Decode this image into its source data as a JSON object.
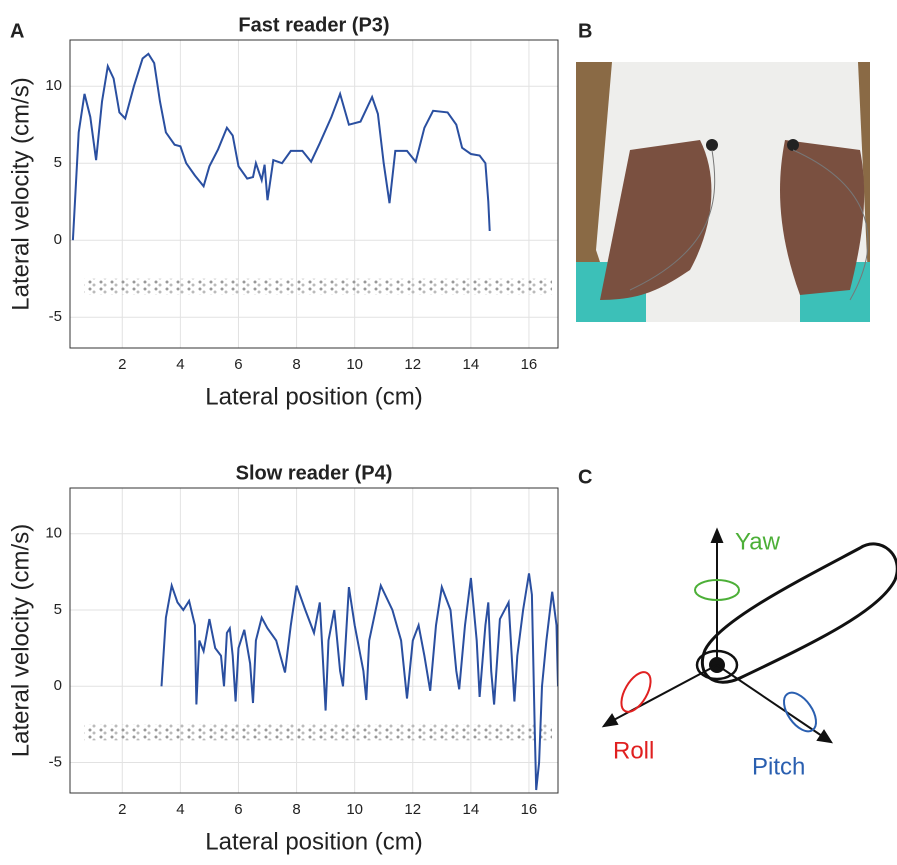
{
  "panels": {
    "a": "A",
    "b": "B",
    "c": "C"
  },
  "chart_data": [
    {
      "type": "line",
      "title": "Fast reader (P3)",
      "x_label": "Lateral position (cm)",
      "y_label": "Lateral velocity (cm/s)",
      "xlim": [
        0.2,
        17
      ],
      "ylim": [
        -7,
        13
      ],
      "xticks": [
        2,
        4,
        6,
        8,
        10,
        12,
        14,
        16
      ],
      "yticks": [
        -5,
        0,
        5,
        10
      ],
      "grid": true,
      "series": [
        {
          "color": "#2a4fa0",
          "x": [
            0.3,
            0.5,
            0.7,
            0.9,
            1.1,
            1.3,
            1.5,
            1.7,
            1.9,
            2.1,
            2.4,
            2.7,
            2.9,
            3.1,
            3.3,
            3.5,
            3.8,
            4.0,
            4.2,
            4.5,
            4.8,
            5.0,
            5.3,
            5.6,
            5.8,
            6.0,
            6.3,
            6.5,
            6.6,
            6.8,
            6.9,
            7.0,
            7.2,
            7.5,
            7.8,
            8.2,
            8.5,
            8.8,
            9.2,
            9.5,
            9.8,
            10.2,
            10.6,
            10.8,
            11.0,
            11.2,
            11.4,
            11.8,
            12.1,
            12.4,
            12.7,
            13.2,
            13.5,
            13.7,
            14.0,
            14.3,
            14.5,
            14.6,
            14.65
          ],
          "values": [
            0,
            7,
            9.5,
            8,
            5.2,
            9,
            11.3,
            10.5,
            8.3,
            7.9,
            10,
            11.8,
            12.1,
            11.5,
            9,
            7,
            6.2,
            6.1,
            5,
            4.2,
            3.5,
            4.8,
            5.9,
            7.3,
            6.8,
            4.8,
            4,
            4.1,
            5,
            3.9,
            4.9,
            2.6,
            5.2,
            5,
            5.8,
            5.8,
            5.1,
            6.3,
            8,
            9.5,
            7.5,
            7.7,
            9.3,
            8.2,
            5,
            2.4,
            5.8,
            5.8,
            5.1,
            7.3,
            8.4,
            8.3,
            7.5,
            6,
            5.6,
            5.5,
            5,
            2.5,
            0.6
          ]
        }
      ]
    },
    {
      "type": "line",
      "title": "Slow reader (P4)",
      "x_label": "Lateral position (cm)",
      "y_label": "Lateral velocity (cm/s)",
      "xlim": [
        0.2,
        17
      ],
      "ylim": [
        -7,
        13
      ],
      "xticks": [
        2,
        4,
        6,
        8,
        10,
        12,
        14,
        16
      ],
      "yticks": [
        -5,
        0,
        5,
        10
      ],
      "grid": true,
      "series": [
        {
          "color": "#2a4fa0",
          "x": [
            3.35,
            3.5,
            3.7,
            3.9,
            4.1,
            4.3,
            4.5,
            4.55,
            4.65,
            4.8,
            5.0,
            5.2,
            5.4,
            5.5,
            5.6,
            5.7,
            5.8,
            5.9,
            6.0,
            6.2,
            6.4,
            6.5,
            6.6,
            6.8,
            7.0,
            7.3,
            7.6,
            7.8,
            8.0,
            8.3,
            8.6,
            8.8,
            8.9,
            9.0,
            9.1,
            9.3,
            9.5,
            9.6,
            9.8,
            10.0,
            10.3,
            10.4,
            10.5,
            10.9,
            11.3,
            11.6,
            11.8,
            12.0,
            12.2,
            12.4,
            12.6,
            12.8,
            13.0,
            13.3,
            13.5,
            13.6,
            13.8,
            14.0,
            14.2,
            14.3,
            14.5,
            14.6,
            14.7,
            14.8,
            15.0,
            15.3,
            15.5,
            15.6,
            15.8,
            16.0,
            16.1,
            16.2,
            16.25,
            16.35,
            16.45,
            16.6,
            16.8,
            16.95,
            17.0
          ],
          "values": [
            0,
            4.5,
            6.6,
            5.5,
            5,
            5.6,
            4,
            -1.2,
            3,
            2.3,
            4.4,
            2.5,
            2,
            0,
            3.5,
            3.8,
            2,
            -1,
            2.5,
            3.7,
            1.5,
            -1.1,
            3,
            4.5,
            3.8,
            3,
            0.9,
            4,
            6.6,
            5,
            3.5,
            5.5,
            2,
            -1.6,
            3,
            5,
            1,
            0,
            6.5,
            4,
            1,
            -0.9,
            3,
            6.6,
            5,
            3,
            -0.8,
            3,
            4,
            2,
            -0.3,
            4,
            6.5,
            5,
            1,
            -0.2,
            4,
            7.1,
            3,
            -0.7,
            4,
            5.5,
            1,
            -1.2,
            4.4,
            5.5,
            -1,
            2,
            5,
            7.4,
            6,
            -3,
            -6.8,
            -5,
            0,
            3,
            6.2,
            4,
            0
          ]
        }
      ]
    }
  ],
  "diagram": {
    "yaw": "Yaw",
    "roll": "Roll",
    "pitch": "Pitch"
  }
}
